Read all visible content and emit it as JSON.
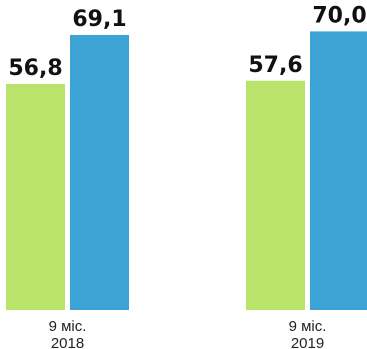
{
  "chart_data": {
    "type": "bar",
    "categories": [
      [
        "9 міс.",
        "2018"
      ],
      [
        "9 міс.",
        "2019"
      ]
    ],
    "series": [
      {
        "color": "#b9e36b",
        "values": [
          56.8,
          57.6
        ],
        "labels": [
          "56,8",
          "57,6"
        ]
      },
      {
        "color": "#3da3d4",
        "values": [
          69.1,
          70.0
        ],
        "labels": [
          "69,1",
          "70,0"
        ]
      }
    ],
    "title": "",
    "xlabel": "",
    "ylabel": "",
    "ylim": [
      0,
      80
    ],
    "grid": false,
    "legend": "none"
  }
}
